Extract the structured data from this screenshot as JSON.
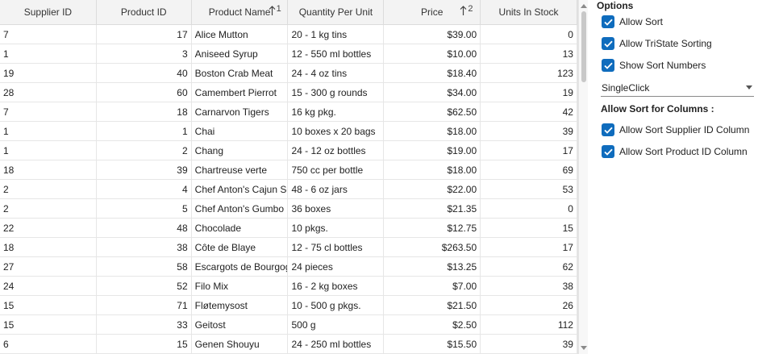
{
  "grid": {
    "columns": [
      {
        "label": "Supplier ID",
        "align": "left"
      },
      {
        "label": "Product ID",
        "align": "right"
      },
      {
        "label": "Product Name",
        "align": "left",
        "sort_dir": "asc",
        "sort_order": "1"
      },
      {
        "label": "Quantity Per Unit",
        "align": "left"
      },
      {
        "label": "Price",
        "align": "right",
        "sort_dir": "asc",
        "sort_order": "2"
      },
      {
        "label": "Units In Stock",
        "align": "right"
      }
    ],
    "rows": [
      [
        "7",
        "17",
        "Alice Mutton",
        "20 - 1 kg tins",
        "$39.00",
        "0"
      ],
      [
        "1",
        "3",
        "Aniseed Syrup",
        "12 - 550 ml bottles",
        "$10.00",
        "13"
      ],
      [
        "19",
        "40",
        "Boston Crab Meat",
        "24 - 4 oz tins",
        "$18.40",
        "123"
      ],
      [
        "28",
        "60",
        "Camembert Pierrot",
        "15 - 300 g rounds",
        "$34.00",
        "19"
      ],
      [
        "7",
        "18",
        "Carnarvon Tigers",
        "16 kg pkg.",
        "$62.50",
        "42"
      ],
      [
        "1",
        "1",
        "Chai",
        "10 boxes x 20 bags",
        "$18.00",
        "39"
      ],
      [
        "1",
        "2",
        "Chang",
        "24 - 12 oz bottles",
        "$19.00",
        "17"
      ],
      [
        "18",
        "39",
        "Chartreuse verte",
        "750 cc per bottle",
        "$18.00",
        "69"
      ],
      [
        "2",
        "4",
        "Chef Anton's Cajun Seasoning",
        "48 - 6 oz jars",
        "$22.00",
        "53"
      ],
      [
        "2",
        "5",
        "Chef Anton's Gumbo Mix",
        "36 boxes",
        "$21.35",
        "0"
      ],
      [
        "22",
        "48",
        "Chocolade",
        "10 pkgs.",
        "$12.75",
        "15"
      ],
      [
        "18",
        "38",
        "Côte de Blaye",
        "12 - 75 cl bottles",
        "$263.50",
        "17"
      ],
      [
        "27",
        "58",
        "Escargots de Bourgogne",
        "24 pieces",
        "$13.25",
        "62"
      ],
      [
        "24",
        "52",
        "Filo Mix",
        "16 - 2 kg boxes",
        "$7.00",
        "38"
      ],
      [
        "15",
        "71",
        "Fløtemysost",
        "10 - 500 g pkgs.",
        "$21.50",
        "26"
      ],
      [
        "15",
        "33",
        "Geitost",
        "500 g",
        "$2.50",
        "112"
      ],
      [
        "6",
        "15",
        "Genen Shouyu",
        "24 - 250 ml bottles",
        "$15.50",
        "39"
      ]
    ]
  },
  "options": {
    "title": "Options",
    "allow_sort": "Allow Sort",
    "allow_tristate": "Allow TriState Sorting",
    "show_sort_numbers": "Show Sort Numbers",
    "sort_click_mode": "SingleClick",
    "columns_section": "Allow Sort for Columns :",
    "allow_supplier": "Allow Sort Supplier ID Column",
    "allow_product": "Allow Sort Product ID Column"
  },
  "colors": {
    "accent": "#0f6cbd",
    "header_bg": "#f3f3f3",
    "grid_line": "#e6e6e6"
  }
}
